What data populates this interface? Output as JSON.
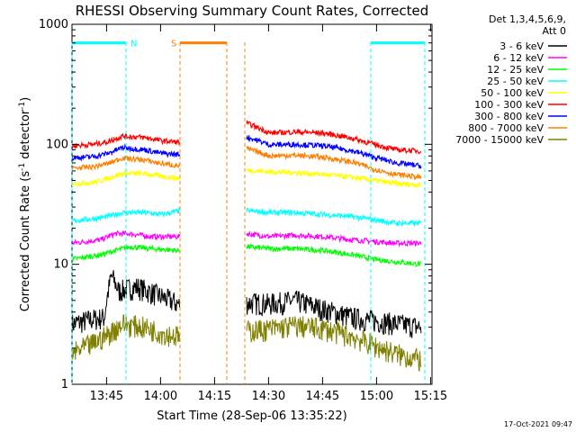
{
  "chart_data": {
    "type": "line",
    "title": "RHESSI Observing Summary Count Rates, Corrected",
    "xlabel": "Start Time (28-Sep-06 13:35:22)",
    "ylabel_main": "Corrected Count Rate (s",
    "ylabel_sup1": "-1",
    "ylabel_mid": " detector",
    "ylabel_sup2": "-1",
    "ylabel_end": ")",
    "x_unit": "minutes since 13:35:22",
    "xlim": [
      0,
      100
    ],
    "ylim": [
      1,
      1000
    ],
    "y_scale": "log",
    "x_ticks": [
      {
        "x": 9.6,
        "label": "13:45"
      },
      {
        "x": 24.6,
        "label": "14:00"
      },
      {
        "x": 39.6,
        "label": "14:15"
      },
      {
        "x": 54.6,
        "label": "14:30"
      },
      {
        "x": 69.6,
        "label": "14:45"
      },
      {
        "x": 84.6,
        "label": "15:00"
      },
      {
        "x": 99.6,
        "label": "15:15"
      }
    ],
    "y_ticks": [
      {
        "y": 1,
        "label": "1"
      },
      {
        "y": 10,
        "label": "10"
      },
      {
        "y": 100,
        "label": "100"
      },
      {
        "y": 1000,
        "label": "1000"
      }
    ],
    "legend_header": [
      "Det 1,3,4,5,6,9,",
      "Att 0"
    ],
    "legend_placement": "right",
    "segments": [
      [
        0,
        30
      ],
      [
        48.5,
        97
      ]
    ],
    "series": [
      {
        "name": "3 - 6 keV",
        "color": "#000000",
        "points": [
          [
            0,
            3.2
          ],
          [
            6,
            3.5
          ],
          [
            9,
            3.6
          ],
          [
            11,
            8
          ],
          [
            13,
            6
          ],
          [
            18,
            6.5
          ],
          [
            24,
            5.5
          ],
          [
            30,
            4.6
          ],
          [
            48.5,
            4.8
          ],
          [
            55,
            4.7
          ],
          [
            62,
            5
          ],
          [
            70,
            4.2
          ],
          [
            78,
            3.6
          ],
          [
            84,
            3.4
          ],
          [
            90,
            3.2
          ],
          [
            97,
            3.0
          ]
        ]
      },
      {
        "name": "6 - 12 keV",
        "color": "#ff00ff",
        "points": [
          [
            0,
            15
          ],
          [
            8,
            16
          ],
          [
            12,
            18
          ],
          [
            16,
            18
          ],
          [
            22,
            17
          ],
          [
            30,
            17
          ],
          [
            48.5,
            18
          ],
          [
            55,
            17
          ],
          [
            62,
            17.5
          ],
          [
            70,
            17
          ],
          [
            78,
            16
          ],
          [
            84,
            15.5
          ],
          [
            90,
            15
          ],
          [
            97,
            15
          ]
        ]
      },
      {
        "name": "12 - 25 keV",
        "color": "#00ff00",
        "points": [
          [
            0,
            11
          ],
          [
            8,
            12
          ],
          [
            12,
            13
          ],
          [
            16,
            14
          ],
          [
            22,
            13.5
          ],
          [
            30,
            13
          ],
          [
            48.5,
            14
          ],
          [
            55,
            13.5
          ],
          [
            62,
            13.5
          ],
          [
            70,
            13
          ],
          [
            78,
            12
          ],
          [
            84,
            11
          ],
          [
            90,
            10.5
          ],
          [
            97,
            10
          ]
        ]
      },
      {
        "name": "25 - 50 keV",
        "color": "#00ffff",
        "points": [
          [
            0,
            23
          ],
          [
            6,
            24
          ],
          [
            10,
            25
          ],
          [
            14,
            27
          ],
          [
            20,
            27
          ],
          [
            25,
            26
          ],
          [
            30,
            28
          ],
          [
            48.5,
            28
          ],
          [
            55,
            27
          ],
          [
            62,
            27
          ],
          [
            70,
            26
          ],
          [
            78,
            25
          ],
          [
            84,
            23.5
          ],
          [
            90,
            22
          ],
          [
            97,
            22
          ]
        ]
      },
      {
        "name": "50 - 100 keV",
        "color": "#ffff00",
        "points": [
          [
            0,
            47
          ],
          [
            6,
            48
          ],
          [
            10,
            52
          ],
          [
            14,
            57
          ],
          [
            20,
            57
          ],
          [
            25,
            54
          ],
          [
            30,
            52
          ],
          [
            48.5,
            61
          ],
          [
            55,
            59
          ],
          [
            62,
            58
          ],
          [
            70,
            56
          ],
          [
            78,
            53
          ],
          [
            84,
            50
          ],
          [
            90,
            47
          ],
          [
            97,
            46
          ]
        ]
      },
      {
        "name": "100 - 300 keV",
        "color": "#ff0000",
        "points": [
          [
            0,
            97
          ],
          [
            6,
            100
          ],
          [
            10,
            105
          ],
          [
            14,
            117
          ],
          [
            20,
            114
          ],
          [
            25,
            107
          ],
          [
            30,
            104
          ],
          [
            48.5,
            150
          ],
          [
            55,
            124
          ],
          [
            62,
            127
          ],
          [
            70,
            124
          ],
          [
            78,
            112
          ],
          [
            84,
            100
          ],
          [
            90,
            90
          ],
          [
            97,
            88
          ]
        ]
      },
      {
        "name": "300 - 800 keV",
        "color": "#0000ff",
        "points": [
          [
            0,
            77
          ],
          [
            6,
            79
          ],
          [
            10,
            84
          ],
          [
            14,
            94
          ],
          [
            20,
            90
          ],
          [
            25,
            84
          ],
          [
            30,
            82
          ],
          [
            48.5,
            115
          ],
          [
            55,
            99
          ],
          [
            62,
            100
          ],
          [
            70,
            97
          ],
          [
            78,
            88
          ],
          [
            84,
            78
          ],
          [
            90,
            70
          ],
          [
            97,
            66
          ]
        ]
      },
      {
        "name": "800 - 7000 keV",
        "color": "#ff8000",
        "points": [
          [
            0,
            63
          ],
          [
            6,
            65
          ],
          [
            10,
            69
          ],
          [
            14,
            77
          ],
          [
            20,
            74
          ],
          [
            25,
            69
          ],
          [
            30,
            66
          ],
          [
            48.5,
            92
          ],
          [
            55,
            80
          ],
          [
            62,
            81
          ],
          [
            70,
            78
          ],
          [
            78,
            71
          ],
          [
            84,
            62
          ],
          [
            90,
            56
          ],
          [
            97,
            53
          ]
        ]
      },
      {
        "name": "7000 - 15000 keV",
        "color": "#808000",
        "points": [
          [
            0,
            1.8
          ],
          [
            6,
            2.2
          ],
          [
            10,
            2.6
          ],
          [
            14,
            3.2
          ],
          [
            20,
            3.0
          ],
          [
            25,
            2.7
          ],
          [
            30,
            2.5
          ],
          [
            48.5,
            2.8
          ],
          [
            55,
            2.9
          ],
          [
            62,
            3.1
          ],
          [
            70,
            2.9
          ],
          [
            78,
            2.5
          ],
          [
            84,
            2.1
          ],
          [
            90,
            1.8
          ],
          [
            97,
            1.6
          ]
        ]
      }
    ],
    "intervals": [
      {
        "label": "N",
        "color": "#00ffff",
        "y": 700,
        "bars": [
          [
            0,
            15
          ]
        ],
        "vlines": [
          0,
          15,
          83,
          98
        ]
      },
      {
        "label": "S",
        "color": "#ff8000",
        "y": 700,
        "bars": [
          [
            30,
            43
          ]
        ],
        "vlines": [
          30,
          43,
          48
        ]
      }
    ]
  },
  "footer_timestamp": "17-Oct-2021 09:47"
}
